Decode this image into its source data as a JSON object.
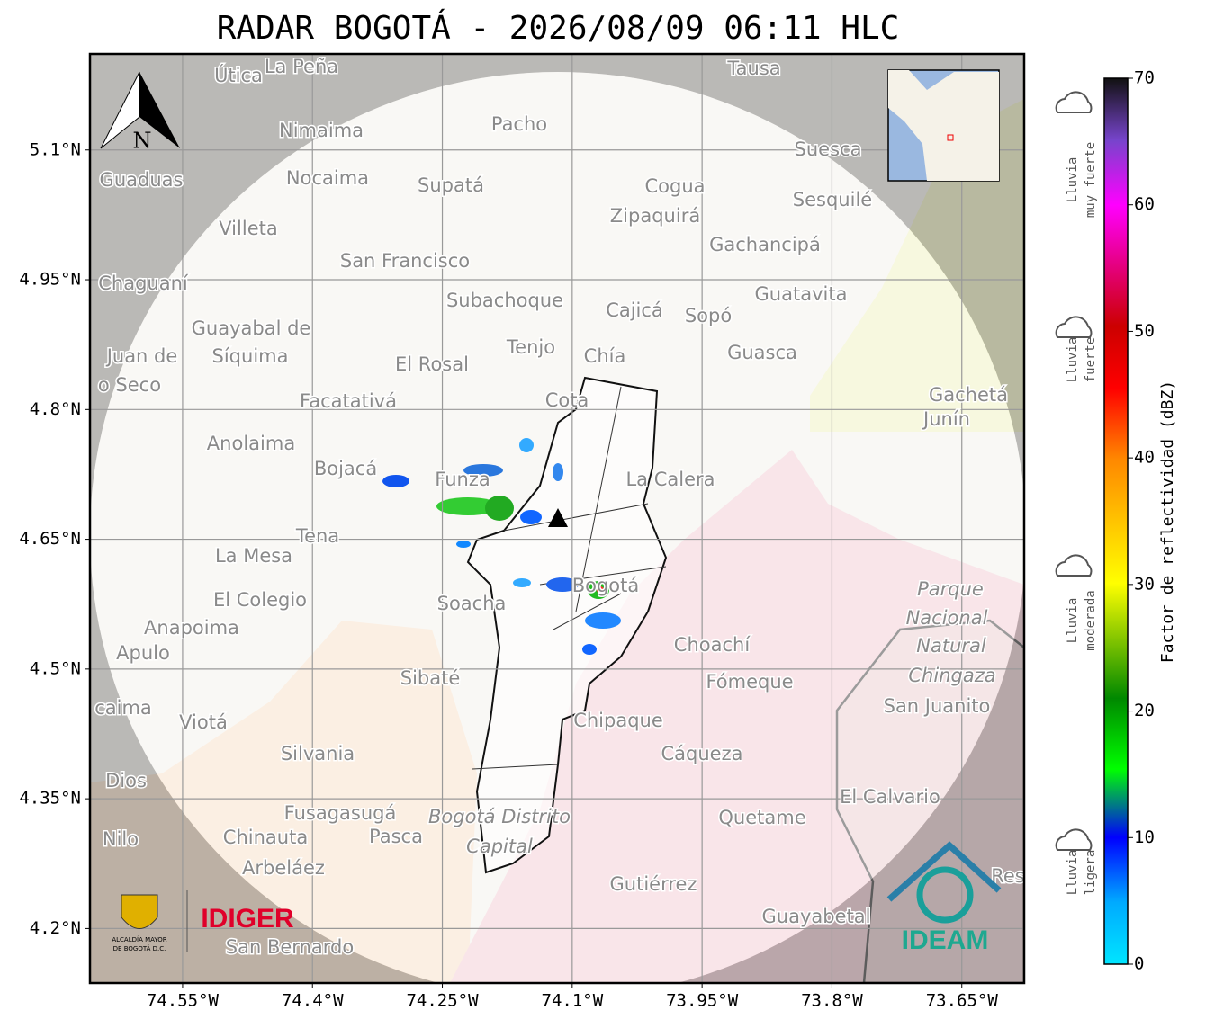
{
  "title": "RADAR BOGOTÁ - 2026/08/09 06:11 HLC",
  "xlim": [
    -74.657,
    -73.578
  ],
  "ylim": [
    4.137,
    5.211
  ],
  "xticks": [
    {
      "value": -74.55,
      "label": "74.55°W"
    },
    {
      "value": -74.4,
      "label": "74.4°W"
    },
    {
      "value": -74.25,
      "label": "74.25°W"
    },
    {
      "value": -74.1,
      "label": "74.1°W"
    },
    {
      "value": -73.95,
      "label": "73.95°W"
    },
    {
      "value": -73.8,
      "label": "73.8°W"
    },
    {
      "value": -73.65,
      "label": "73.65°W"
    }
  ],
  "yticks": [
    {
      "value": 5.1,
      "label": "5.1°N"
    },
    {
      "value": 4.95,
      "label": "4.95°N"
    },
    {
      "value": 4.8,
      "label": "4.8°N"
    },
    {
      "value": 4.65,
      "label": "4.65°N"
    },
    {
      "value": 4.5,
      "label": "4.5°N"
    },
    {
      "value": 4.35,
      "label": "4.35°N"
    },
    {
      "value": 4.2,
      "label": "4.2°N"
    }
  ],
  "colorbar": {
    "label": "Factor de reflectividad (dBZ)",
    "lim": [
      0,
      70
    ],
    "ticks": [
      0,
      10,
      20,
      30,
      40,
      50,
      60,
      70
    ]
  },
  "legend": [
    [
      "Lluvia",
      "muy fuerte"
    ],
    [
      "Lluvia",
      "fuerte"
    ],
    [
      "Lluvia",
      "moderada"
    ],
    [
      "Lluvia",
      "ligera"
    ]
  ],
  "north": "N",
  "logos": {
    "idiger": "IDIGER",
    "ideam": "IDEAM",
    "alcaldia": [
      "ALCALDÍA MAYOR",
      "DE BOGOTÁ D.C."
    ]
  },
  "map_labels": [
    "Útica",
    "La Peña",
    "Tausa",
    "Pacho",
    "Nimaima",
    "Guaduas",
    "Nocaima",
    "Supatá",
    "Cogua",
    "Suesca",
    "Sesquilé",
    "Villeta",
    "Zipaquirá",
    "Gachancipá",
    "San Francisco",
    "Chaguaní",
    "Guatavita",
    "Subachoque",
    "Cajicá",
    "Sopó",
    "Guayabal de",
    "Síquima",
    "Tenjo",
    "Guasca",
    "Juan de",
    "El Rosal",
    "Chía",
    "o Seco",
    "Gachetá",
    "Junín",
    "Facatativá",
    "Cota",
    "Anolaima",
    "Bojacá",
    "Funza",
    "La Calera",
    "Tena",
    "La Mesa",
    "Bogotá",
    "Soacha",
    "El Colegio",
    "Parque",
    "Nacional",
    "Natural",
    "Chingaza",
    "Anapoima",
    "Apulo",
    "Choachí",
    "Fómeque",
    "Sibaté",
    "San Juanito",
    "caima",
    "Viotá",
    "Chipaque",
    "Silvania",
    "Cáqueza",
    "Dios",
    "El Calvario",
    "Fusagasugá",
    "Bogotá Distrito",
    "Capital",
    "Nilo",
    "Chinauta",
    "Pasca",
    "Quetame",
    "Arbeláez",
    "Gutiérrez",
    "Guayabetal",
    "San Bernardo",
    "Res"
  ]
}
